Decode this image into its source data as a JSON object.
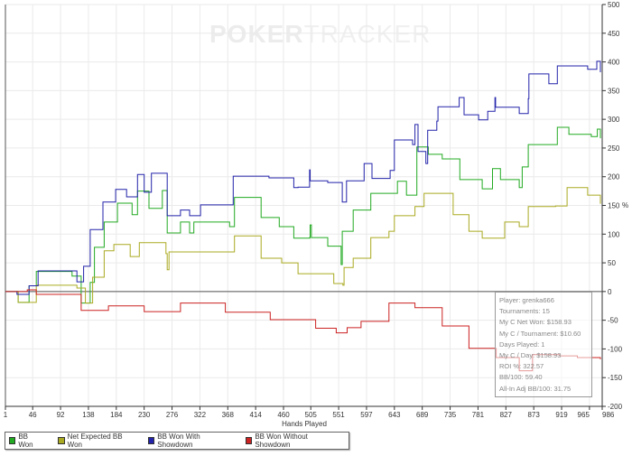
{
  "logo": {
    "part1": "POKER",
    "part2": "TRACKER"
  },
  "chart_data": {
    "type": "line",
    "title": "",
    "xlabel": "Hands Played",
    "ylabel": "%",
    "xlim": [
      1,
      986
    ],
    "ylim": [
      -200,
      500
    ],
    "grid": true,
    "x_ticks": [
      1,
      46,
      92,
      138,
      184,
      230,
      276,
      322,
      368,
      414,
      460,
      505,
      551,
      597,
      643,
      689,
      735,
      781,
      827,
      873,
      919,
      965,
      986
    ],
    "y_ticks": [
      -200,
      -150,
      -100,
      -50,
      0,
      50,
      100,
      150,
      200,
      250,
      300,
      350,
      400,
      450,
      500
    ],
    "legend_placement": "bottom-left",
    "series": [
      {
        "name": "BB Won",
        "color": "#22aa22",
        "points": [
          [
            1,
            0
          ],
          [
            22,
            -19
          ],
          [
            40,
            10
          ],
          [
            52,
            35
          ],
          [
            111,
            27
          ],
          [
            126,
            -20
          ],
          [
            141,
            16
          ],
          [
            148,
            77
          ],
          [
            164,
            121
          ],
          [
            186,
            154
          ],
          [
            210,
            134
          ],
          [
            219,
            175
          ],
          [
            238,
            145
          ],
          [
            260,
            176
          ],
          [
            268,
            102
          ],
          [
            290,
            121
          ],
          [
            305,
            102
          ],
          [
            312,
            121
          ],
          [
            371,
            113
          ],
          [
            379,
            164
          ],
          [
            423,
            129
          ],
          [
            453,
            113
          ],
          [
            477,
            93
          ],
          [
            503,
            94
          ],
          [
            504,
            116
          ],
          [
            506,
            94
          ],
          [
            533,
            79
          ],
          [
            555,
            47
          ],
          [
            557,
            105
          ],
          [
            575,
            142
          ],
          [
            604,
            171
          ],
          [
            648,
            192
          ],
          [
            663,
            168
          ],
          [
            680,
            252
          ],
          [
            699,
            239
          ],
          [
            722,
            231
          ],
          [
            751,
            195
          ],
          [
            788,
            179
          ],
          [
            805,
            214
          ],
          [
            818,
            195
          ],
          [
            849,
            181
          ],
          [
            854,
            217
          ],
          [
            864,
            256
          ],
          [
            901,
            256
          ],
          [
            912,
            286
          ],
          [
            931,
            274
          ],
          [
            968,
            270
          ],
          [
            978,
            283
          ],
          [
            983,
            267
          ]
        ]
      },
      {
        "name": "Net Expected BB Won",
        "color": "#aaaa22",
        "points": [
          [
            1,
            0
          ],
          [
            22,
            -19
          ],
          [
            52,
            11
          ],
          [
            119,
            6
          ],
          [
            133,
            -20
          ],
          [
            145,
            25
          ],
          [
            164,
            71
          ],
          [
            180,
            82
          ],
          [
            207,
            61
          ],
          [
            222,
            85
          ],
          [
            266,
            66
          ],
          [
            268,
            38
          ],
          [
            271,
            69
          ],
          [
            290,
            69
          ],
          [
            379,
            97
          ],
          [
            423,
            58
          ],
          [
            457,
            50
          ],
          [
            484,
            31
          ],
          [
            543,
            14
          ],
          [
            558,
            11
          ],
          [
            560,
            42
          ],
          [
            575,
            58
          ],
          [
            604,
            94
          ],
          [
            634,
            105
          ],
          [
            643,
            132
          ],
          [
            677,
            148
          ],
          [
            692,
            171
          ],
          [
            740,
            134
          ],
          [
            766,
            105
          ],
          [
            788,
            93
          ],
          [
            825,
            121
          ],
          [
            849,
            113
          ],
          [
            864,
            148
          ],
          [
            909,
            149
          ],
          [
            928,
            181
          ],
          [
            962,
            168
          ],
          [
            983,
            153
          ]
        ]
      },
      {
        "name": "BB Won With Showdown",
        "color": "#2222aa",
        "points": [
          [
            1,
            0
          ],
          [
            20,
            -5
          ],
          [
            40,
            10
          ],
          [
            55,
            36
          ],
          [
            111,
            36
          ],
          [
            119,
            17
          ],
          [
            130,
            44
          ],
          [
            141,
            108
          ],
          [
            162,
            156
          ],
          [
            183,
            178
          ],
          [
            201,
            165
          ],
          [
            219,
            204
          ],
          [
            230,
            173
          ],
          [
            242,
            206
          ],
          [
            268,
            132
          ],
          [
            290,
            142
          ],
          [
            305,
            132
          ],
          [
            323,
            151
          ],
          [
            377,
            201
          ],
          [
            436,
            198
          ],
          [
            477,
            181
          ],
          [
            484,
            182
          ],
          [
            503,
            212
          ],
          [
            504,
            193
          ],
          [
            533,
            190
          ],
          [
            557,
            156
          ],
          [
            564,
            193
          ],
          [
            593,
            223
          ],
          [
            606,
            197
          ],
          [
            636,
            211
          ],
          [
            643,
            264
          ],
          [
            673,
            256
          ],
          [
            677,
            291
          ],
          [
            682,
            244
          ],
          [
            695,
            223
          ],
          [
            698,
            281
          ],
          [
            713,
            297
          ],
          [
            715,
            322
          ],
          [
            750,
            338
          ],
          [
            758,
            308
          ],
          [
            782,
            299
          ],
          [
            797,
            314
          ],
          [
            809,
            338
          ],
          [
            810,
            321
          ],
          [
            849,
            310
          ],
          [
            864,
            336
          ],
          [
            865,
            379
          ],
          [
            898,
            362
          ],
          [
            912,
            393
          ],
          [
            962,
            387
          ],
          [
            977,
            401
          ],
          [
            983,
            382
          ]
        ]
      },
      {
        "name": "BB Won Without Showdown",
        "color": "#cc2222",
        "points": [
          [
            1,
            0
          ],
          [
            37,
            3
          ],
          [
            52,
            -5
          ],
          [
            66,
            -5
          ],
          [
            126,
            -33
          ],
          [
            141,
            -33
          ],
          [
            171,
            -25
          ],
          [
            230,
            -35
          ],
          [
            290,
            -20
          ],
          [
            364,
            -36
          ],
          [
            438,
            -49
          ],
          [
            513,
            -64
          ],
          [
            547,
            -72
          ],
          [
            565,
            -63
          ],
          [
            588,
            -52
          ],
          [
            634,
            -20
          ],
          [
            677,
            -28
          ],
          [
            722,
            -60
          ],
          [
            766,
            -99
          ],
          [
            811,
            -115
          ],
          [
            849,
            -138
          ],
          [
            871,
            -110
          ],
          [
            916,
            -112
          ],
          [
            945,
            -115
          ],
          [
            983,
            -118
          ]
        ]
      }
    ]
  },
  "stats": {
    "player": "Player: grenka666",
    "tournaments": "Tournaments: 15",
    "net_won": "My C Net Won: $158.93",
    "per_tournament": "My C / Tournament: $10.60",
    "days_played": "Days Played: 1",
    "per_day": "My C / Day: $158.93",
    "roi": "ROI %: 322.57",
    "bb100": "BB/100: 59.40",
    "allin_bb100": "All-In Adj BB/100: 31.75"
  }
}
